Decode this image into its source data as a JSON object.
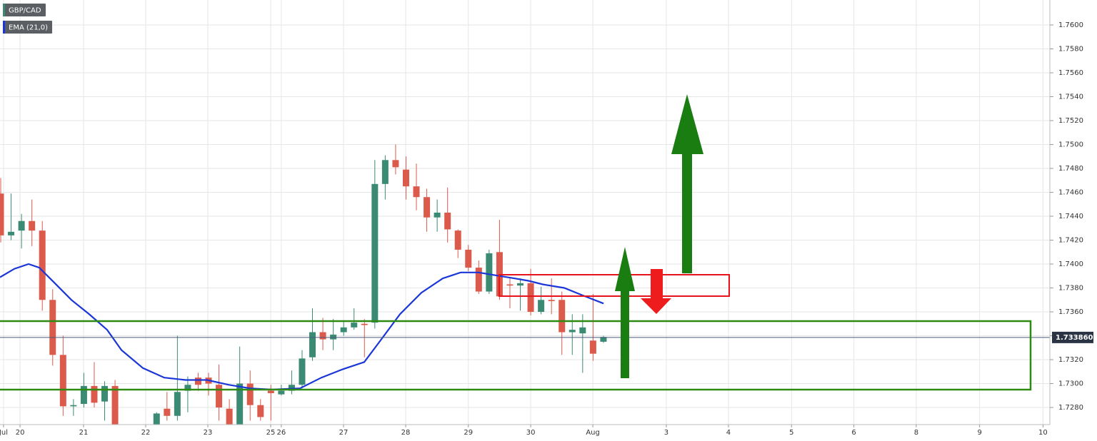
{
  "chart_data": {
    "type": "candlestick",
    "symbol": "GBP/CAD",
    "up_color": "#3b8a74",
    "down_color": "#dc5a4b",
    "x": [
      0,
      1,
      2,
      3,
      4,
      5,
      6,
      7,
      8,
      9,
      10,
      11,
      15,
      16,
      17,
      18,
      19,
      20,
      21,
      22,
      23,
      24,
      25,
      26,
      27,
      28,
      29,
      30,
      31,
      32,
      33,
      34,
      35,
      36,
      37,
      38,
      39,
      40,
      41,
      42,
      43,
      44,
      45,
      46,
      47,
      48,
      49,
      50,
      51,
      52,
      53,
      54,
      55,
      56,
      57,
      58
    ],
    "open": [
      1.7459,
      1.7424,
      1.7428,
      1.7436,
      1.7428,
      1.737,
      1.7324,
      1.7281,
      1.7283,
      1.7298,
      1.7285,
      1.7298,
      1.7266,
      1.7279,
      1.7273,
      1.7294,
      1.7305,
      1.7305,
      1.7299,
      1.7279,
      1.7265,
      1.73,
      1.7282,
      1.7294,
      1.7291,
      1.7294,
      1.7299,
      1.7322,
      1.7343,
      1.7337,
      1.7343,
      1.7347,
      1.735,
      1.7351,
      1.7467,
      1.7487,
      1.7479,
      1.7465,
      1.7456,
      1.7439,
      1.7443,
      1.7428,
      1.7412,
      1.7397,
      1.7377,
      1.741,
      1.7383,
      1.7382,
      1.7384,
      1.736,
      1.737,
      1.737,
      1.7343,
      1.7342,
      1.7336,
      1.7335
    ],
    "high": [
      1.7472,
      1.7459,
      1.7442,
      1.7454,
      1.7436,
      1.7379,
      1.734,
      1.7287,
      1.7309,
      1.7318,
      1.7302,
      1.7303,
      1.7276,
      1.7293,
      1.734,
      1.7306,
      1.7309,
      1.7309,
      1.7316,
      1.7287,
      1.7331,
      1.7311,
      1.7287,
      1.7299,
      1.7299,
      1.7311,
      1.7328,
      1.7363,
      1.7355,
      1.7354,
      1.7353,
      1.7363,
      1.7354,
      1.7487,
      1.7491,
      1.75,
      1.749,
      1.7484,
      1.7463,
      1.7454,
      1.7464,
      1.7429,
      1.7416,
      1.7403,
      1.7412,
      1.7437,
      1.7388,
      1.7388,
      1.7396,
      1.7381,
      1.7388,
      1.7377,
      1.7358,
      1.7358,
      1.7375,
      1.734
    ],
    "low": [
      1.7418,
      1.742,
      1.7413,
      1.7415,
      1.7361,
      1.7315,
      1.7273,
      1.7273,
      1.728,
      1.728,
      1.7269,
      1.726,
      1.7263,
      1.7269,
      1.7269,
      1.7276,
      1.7294,
      1.729,
      1.7269,
      1.7263,
      1.7263,
      1.7269,
      1.7269,
      1.7269,
      1.729,
      1.7291,
      1.7296,
      1.7319,
      1.7328,
      1.7328,
      1.734,
      1.7345,
      1.7322,
      1.7346,
      1.7454,
      1.7475,
      1.7454,
      1.7445,
      1.7427,
      1.7427,
      1.7418,
      1.7405,
      1.7394,
      1.7375,
      1.7375,
      1.737,
      1.7363,
      1.7361,
      1.7357,
      1.7358,
      1.7358,
      1.7324,
      1.7324,
      1.7309,
      1.7319,
      1.7334
    ],
    "close": [
      1.7424,
      1.7427,
      1.7436,
      1.7428,
      1.737,
      1.7324,
      1.7281,
      1.7282,
      1.7298,
      1.7284,
      1.7298,
      1.7263,
      1.7275,
      1.7273,
      1.7293,
      1.7299,
      1.7299,
      1.73,
      1.728,
      1.7265,
      1.73,
      1.7282,
      1.7272,
      1.7292,
      1.7294,
      1.7299,
      1.7321,
      1.7343,
      1.7337,
      1.7341,
      1.7347,
      1.7351,
      1.7349,
      1.7467,
      1.7487,
      1.7481,
      1.7465,
      1.7456,
      1.7439,
      1.7443,
      1.7429,
      1.7412,
      1.7397,
      1.7377,
      1.7409,
      1.7373,
      1.7382,
      1.7384,
      1.736,
      1.737,
      1.7369,
      1.7343,
      1.7345,
      1.7347,
      1.7325,
      1.7339
    ],
    "series": [
      {
        "name": "EMA (21,0)",
        "color": "#1a36d8",
        "x": [
          -0.07,
          1.31,
          2.68,
          3.71,
          5.09,
          6.8,
          8.52,
          10.24,
          11.62,
          13.68,
          15.74,
          17.8,
          19.86,
          21.92,
          23.99,
          26.05,
          28.8,
          30.86,
          32.92,
          34.98,
          36.36,
          38.42,
          40.48,
          42.54,
          44.26,
          45.98,
          48.04,
          49.42,
          50.79,
          52.16,
          54.23,
          55.95,
          58.01
        ],
        "values": [
          1.7389,
          1.7396,
          1.74,
          1.7397,
          1.7385,
          1.737,
          1.7358,
          1.7345,
          1.7328,
          1.7313,
          1.7305,
          1.7303,
          1.7303,
          1.7299,
          1.7296,
          1.7295,
          1.7296,
          1.7305,
          1.7312,
          1.7318,
          1.7334,
          1.7358,
          1.7376,
          1.7388,
          1.7393,
          1.7393,
          1.739,
          1.7388,
          1.7386,
          1.7383,
          1.738,
          1.7374,
          1.7367
        ]
      }
    ],
    "last_price": {
      "value": 1.73386,
      "label": "1.733860"
    },
    "xlim": [
      -0.07,
      100.96
    ],
    "ylim": [
      1.72657,
      1.76209
    ],
    "xticks": [
      {
        "value": 0.27,
        "label": "Jul"
      },
      {
        "value": 1.86,
        "label": "20"
      },
      {
        "value": 7.97,
        "label": "21"
      },
      {
        "value": 13.95,
        "label": "22"
      },
      {
        "value": 19.93,
        "label": "23"
      },
      {
        "value": 25.98,
        "label": "25"
      },
      {
        "value": 27.0,
        "label": "26"
      },
      {
        "value": 32.99,
        "label": "27"
      },
      {
        "value": 38.97,
        "label": "28"
      },
      {
        "value": 45.0,
        "label": "29"
      },
      {
        "value": 51.0,
        "label": "30"
      },
      {
        "value": 56.98,
        "label": "Aug"
      },
      {
        "value": 64.05,
        "label": "3"
      },
      {
        "value": 70.03,
        "label": "4"
      },
      {
        "value": 76.1,
        "label": "5"
      },
      {
        "value": 82.1,
        "label": "6"
      },
      {
        "value": 88.1,
        "label": "8"
      },
      {
        "value": 94.2,
        "label": "9"
      },
      {
        "value": 100.3,
        "label": "10"
      }
    ],
    "yticks": [
      {
        "value": 1.728,
        "label": "1.7280"
      },
      {
        "value": 1.73,
        "label": "1.7300"
      },
      {
        "value": 1.732,
        "label": "1.7320"
      },
      {
        "value": 1.734,
        "label": "1.7340"
      },
      {
        "value": 1.736,
        "label": "1.7360"
      },
      {
        "value": 1.738,
        "label": "1.7380"
      },
      {
        "value": 1.74,
        "label": "1.7400"
      },
      {
        "value": 1.742,
        "label": "1.7420"
      },
      {
        "value": 1.744,
        "label": "1.7440"
      },
      {
        "value": 1.746,
        "label": "1.7460"
      },
      {
        "value": 1.748,
        "label": "1.7480"
      },
      {
        "value": 1.75,
        "label": "1.7500"
      },
      {
        "value": 1.752,
        "label": "1.7520"
      },
      {
        "value": 1.754,
        "label": "1.7540"
      },
      {
        "value": 1.756,
        "label": "1.7560"
      },
      {
        "value": 1.758,
        "label": "1.7580"
      },
      {
        "value": 1.76,
        "label": "1.7600"
      }
    ],
    "grid": true,
    "legend": "top-left"
  }
}
